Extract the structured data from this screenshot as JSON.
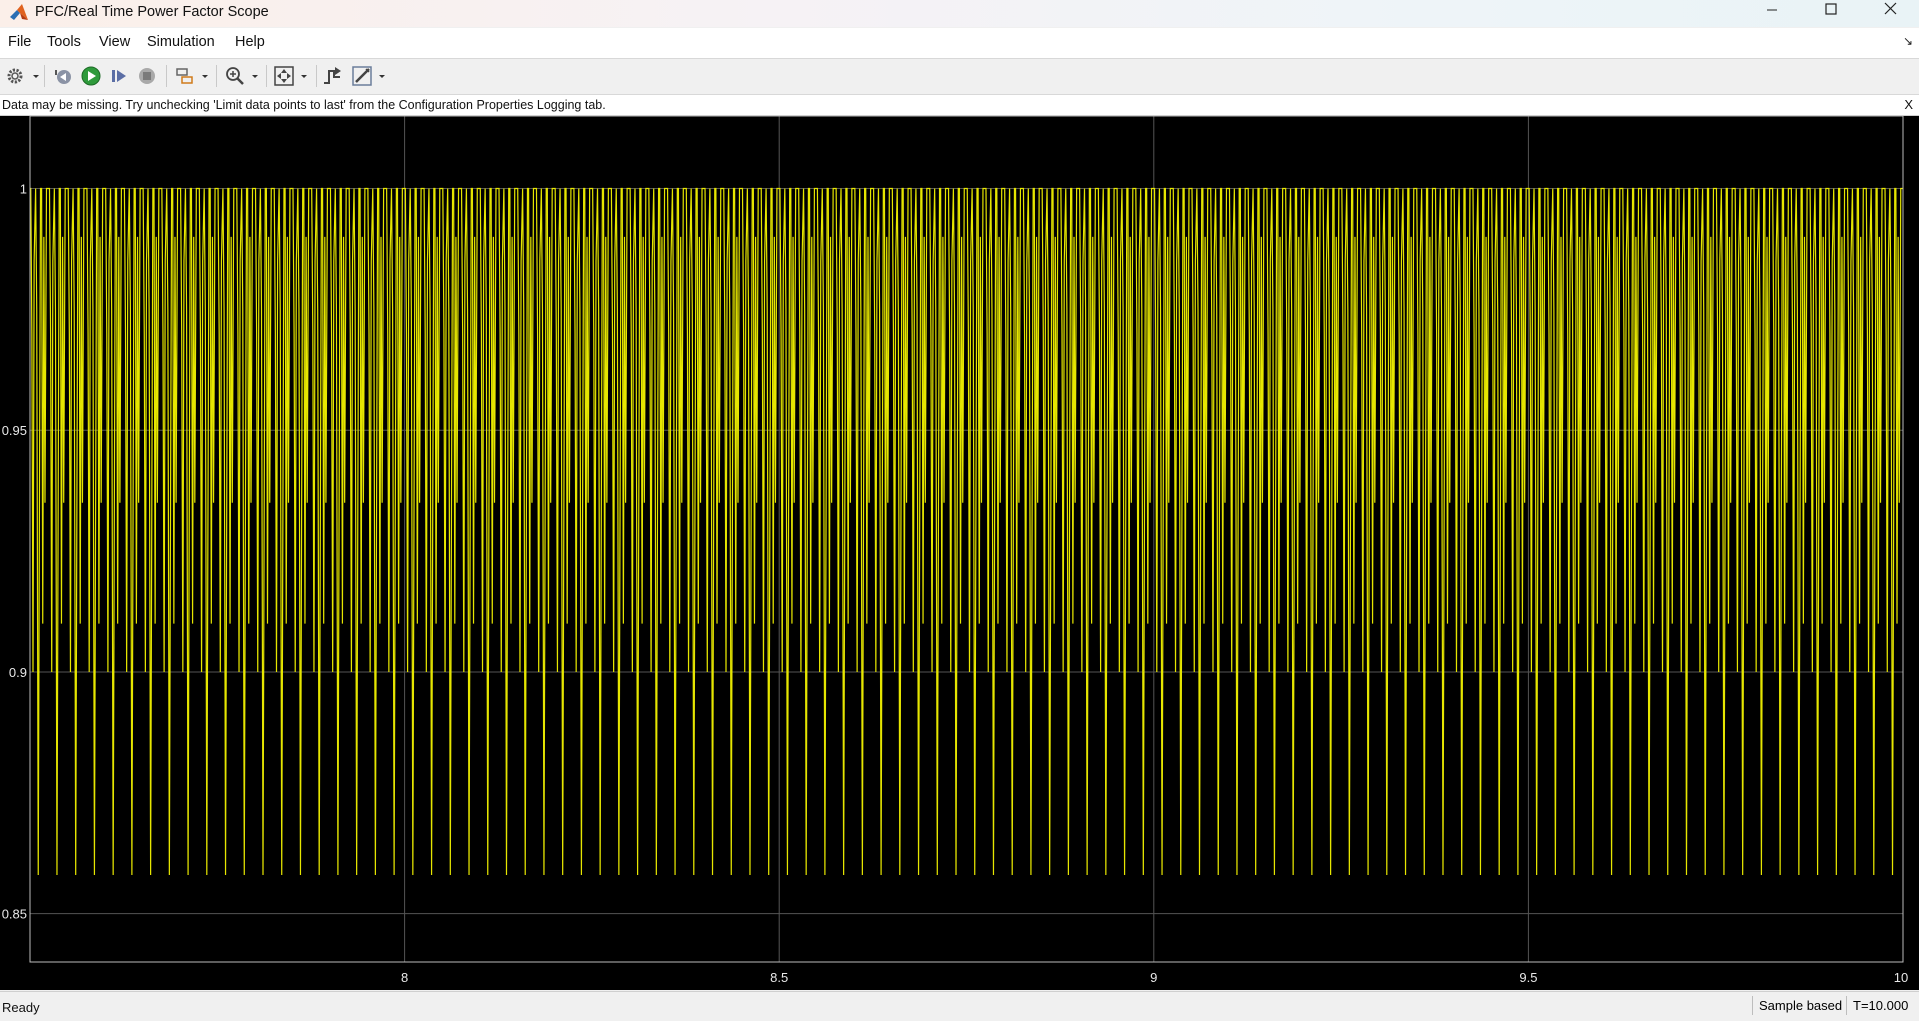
{
  "window": {
    "title": "PFC/Real Time Power Factor Scope",
    "controls": [
      "minimize",
      "maximize",
      "close"
    ],
    "icon": "matlab-logo-icon"
  },
  "menu": {
    "items": [
      "File",
      "Tools",
      "View",
      "Simulation",
      "Help"
    ]
  },
  "toolbar": {
    "buttons": [
      {
        "icon": "gear-icon",
        "dropdown": true
      },
      {
        "icon": "step-back-icon",
        "dropdown": false
      },
      {
        "icon": "run-icon",
        "dropdown": false
      },
      {
        "icon": "step-forward-icon",
        "dropdown": false
      },
      {
        "icon": "stop-icon",
        "dropdown": false
      },
      {
        "icon": "highlight-icon",
        "dropdown": true
      },
      {
        "icon": "zoom-in-icon",
        "dropdown": true
      },
      {
        "icon": "autoscale-icon",
        "dropdown": true
      },
      {
        "icon": "trigger-icon",
        "dropdown": false
      },
      {
        "icon": "measurements-icon",
        "dropdown": true
      }
    ]
  },
  "infobar": {
    "message": "Data may be missing.  Try unchecking 'Limit data points to last' from the Configuration Properties Logging tab.",
    "close_label": "X"
  },
  "status": {
    "left": "Ready",
    "sample_mode": "Sample based",
    "time": "T=10.000"
  },
  "colors": {
    "plot_background": "#000000",
    "signal": "#e6e600",
    "grid": "#555555"
  },
  "chart_data": {
    "type": "line",
    "title": "",
    "xlabel": "",
    "ylabel": "",
    "xlim": [
      7.5,
      10
    ],
    "ylim": [
      0.84,
      1.015
    ],
    "x_ticks": [
      8,
      8.5,
      9,
      9.5,
      10
    ],
    "x_tick_labels": [
      "8",
      "8.5",
      "9",
      "9.5",
      "10"
    ],
    "y_ticks": [
      0.85,
      0.9,
      0.95,
      1
    ],
    "y_tick_labels": [
      "0.85",
      "0.9",
      "0.95",
      "1"
    ],
    "grid": true,
    "series": [
      {
        "color": "#e6e600",
        "oscillation_periods": 100,
        "max_value": 1.0,
        "min_value": 0.858,
        "secondary_trough_value": 0.9
      }
    ]
  }
}
